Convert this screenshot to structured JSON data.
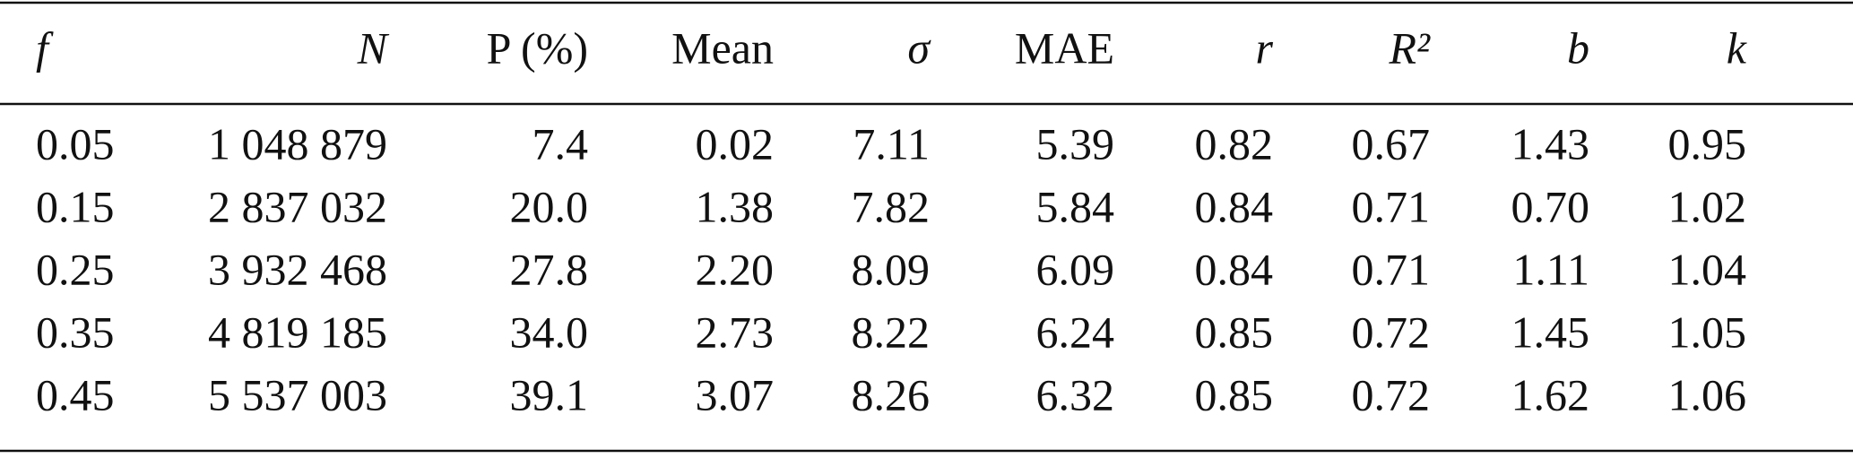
{
  "table": {
    "header": [
      "f",
      "N",
      "P (%)",
      "Mean",
      "σ",
      "MAE",
      "r",
      "R²",
      "b",
      "k"
    ],
    "rows": [
      [
        "0.05",
        "1 048 879",
        "7.4",
        "0.02",
        "7.11",
        "5.39",
        "0.82",
        "0.67",
        "1.43",
        "0.95"
      ],
      [
        "0.15",
        "2 837 032",
        "20.0",
        "1.38",
        "7.82",
        "5.84",
        "0.84",
        "0.71",
        "0.70",
        "1.02"
      ],
      [
        "0.25",
        "3 932 468",
        "27.8",
        "2.20",
        "8.09",
        "6.09",
        "0.84",
        "0.71",
        "1.11",
        "1.04"
      ],
      [
        "0.35",
        "4 819 185",
        "34.0",
        "2.73",
        "8.22",
        "6.24",
        "0.85",
        "0.72",
        "1.45",
        "1.05"
      ],
      [
        "0.45",
        "5 537 003",
        "39.1",
        "3.07",
        "8.26",
        "6.32",
        "0.85",
        "0.72",
        "1.62",
        "1.06"
      ]
    ]
  }
}
